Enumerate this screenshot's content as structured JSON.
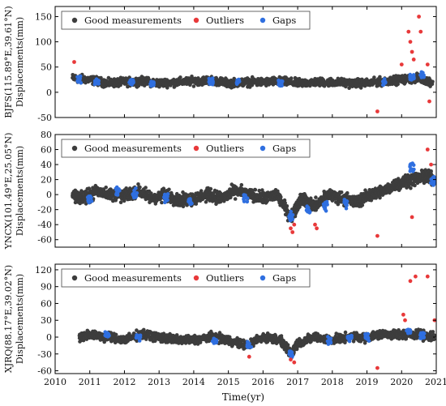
{
  "colors": {
    "good": "#3d3d3d",
    "outlier": "#e8393a",
    "gap": "#2f6fe0"
  },
  "chart_data": [
    {
      "type": "scatter",
      "ylabel": "BJFS(115.89°E,39.61°N)\nDisplacements(mm)",
      "ylim": [
        -50,
        170
      ],
      "yticks": [
        -50,
        0,
        50,
        100,
        150
      ],
      "xlim": [
        2010,
        2021
      ],
      "legend": [
        "Good measurements",
        "Outliers",
        "Gaps"
      ],
      "legend_position": "top",
      "series": [
        {
          "name": "Good measurements",
          "x": [
            2010.5,
            2011.0,
            2011.5,
            2012.0,
            2012.5,
            2013.0,
            2013.5,
            2014.0,
            2014.5,
            2015.0,
            2015.5,
            2016.0,
            2016.5,
            2017.0,
            2017.5,
            2018.0,
            2018.5,
            2019.0,
            2019.5,
            2020.0,
            2020.5,
            2020.9
          ],
          "y": [
            28,
            25,
            18,
            20,
            22,
            18,
            20,
            22,
            24,
            18,
            20,
            20,
            22,
            18,
            20,
            20,
            18,
            18,
            22,
            25,
            28,
            20
          ]
        },
        {
          "name": "Outliers",
          "x": [
            2010.55,
            2019.3,
            2020.0,
            2020.2,
            2020.25,
            2020.3,
            2020.35,
            2020.5,
            2020.55,
            2020.75,
            2020.8
          ],
          "y": [
            60,
            -38,
            55,
            120,
            100,
            80,
            65,
            150,
            120,
            55,
            -18
          ],
          "spread": [
            0,
            0,
            0,
            0,
            0,
            0,
            0,
            0,
            0,
            0,
            0
          ]
        },
        {
          "name": "Gaps",
          "x": [
            2010.7,
            2011.2,
            2012.2,
            2012.8,
            2014.5,
            2015.3,
            2016.5,
            2019.5,
            2020.3,
            2020.6
          ],
          "y": [
            25,
            20,
            20,
            18,
            22,
            20,
            18,
            20,
            28,
            35
          ]
        }
      ]
    },
    {
      "type": "scatter",
      "ylabel": "YNCX(101.49°E,25.05°N)\nDisplacements(mm)",
      "ylim": [
        -70,
        80
      ],
      "yticks": [
        -60,
        -40,
        -20,
        0,
        20,
        40,
        60,
        80
      ],
      "xlim": [
        2010,
        2021
      ],
      "legend": [
        "Good measurements",
        "Outliers",
        "Gaps"
      ],
      "legend_position": "top",
      "series": [
        {
          "name": "Good measurements",
          "x": [
            2010.5,
            2010.8,
            2011.2,
            2011.6,
            2012.0,
            2012.4,
            2012.8,
            2013.2,
            2013.6,
            2014.0,
            2014.4,
            2014.8,
            2015.2,
            2015.6,
            2016.0,
            2016.4,
            2016.8,
            2017.1,
            2017.5,
            2017.9,
            2018.3,
            2018.7,
            2019.1,
            2019.5,
            2019.9,
            2020.3,
            2020.7,
            2020.95
          ],
          "y": [
            0,
            -5,
            5,
            0,
            -2,
            5,
            -5,
            0,
            -8,
            -5,
            0,
            -5,
            5,
            0,
            -5,
            0,
            -30,
            -5,
            -15,
            0,
            -5,
            -10,
            0,
            5,
            15,
            20,
            25,
            20
          ]
        },
        {
          "name": "Outliers",
          "x": [
            2016.8,
            2016.85,
            2016.9,
            2017.5,
            2017.55,
            2019.3,
            2020.3,
            2020.75,
            2020.85
          ],
          "y": [
            -45,
            -50,
            -40,
            -40,
            -45,
            -55,
            -30,
            60,
            40
          ]
        },
        {
          "name": "Gaps",
          "x": [
            2011.0,
            2011.8,
            2012.3,
            2013.2,
            2013.9,
            2015.5,
            2016.8,
            2017.3,
            2017.8,
            2018.4,
            2020.3,
            2020.9
          ],
          "y": [
            -5,
            5,
            0,
            -5,
            -10,
            -5,
            -30,
            -20,
            -15,
            -10,
            35,
            20
          ]
        }
      ]
    },
    {
      "type": "scatter",
      "ylabel": "XJRQ(88.17°E,39.02°N)\nDisplacements(mm)",
      "ylim": [
        -65,
        130
      ],
      "yticks": [
        -60,
        -30,
        0,
        30,
        60,
        90,
        120
      ],
      "xlim": [
        2010,
        2021
      ],
      "xticks": [
        2010,
        2011,
        2012,
        2013,
        2014,
        2015,
        2016,
        2017,
        2018,
        2019,
        2020,
        2021
      ],
      "xlabel": "Time(yr)",
      "legend": [
        "Good measurements",
        "Outliers",
        "Gaps"
      ],
      "legend_position": "top",
      "series": [
        {
          "name": "Good measurements",
          "x": [
            2010.7,
            2011.0,
            2011.5,
            2012.0,
            2012.5,
            2013.0,
            2013.5,
            2014.0,
            2014.5,
            2015.0,
            2015.5,
            2016.0,
            2016.5,
            2016.8,
            2017.0,
            2017.5,
            2018.0,
            2018.5,
            2019.0,
            2019.5,
            2020.0,
            2020.5,
            2020.95
          ],
          "y": [
            0,
            5,
            0,
            -5,
            5,
            0,
            -5,
            -5,
            0,
            -5,
            -15,
            0,
            -5,
            -30,
            -10,
            0,
            -5,
            0,
            0,
            5,
            5,
            5,
            0
          ]
        },
        {
          "name": "Outliers",
          "x": [
            2015.6,
            2016.8,
            2016.9,
            2019.3,
            2020.05,
            2020.1,
            2020.25,
            2020.4,
            2020.75,
            2020.95
          ],
          "y": [
            -35,
            -40,
            -45,
            -55,
            40,
            30,
            100,
            108,
            108,
            30
          ]
        },
        {
          "name": "Gaps",
          "x": [
            2011.5,
            2012.4,
            2014.6,
            2015.6,
            2016.8,
            2017.9,
            2018.5,
            2019.0,
            2020.2,
            2020.6
          ],
          "y": [
            5,
            0,
            -5,
            -15,
            -30,
            -5,
            0,
            0,
            10,
            5
          ]
        }
      ]
    }
  ]
}
